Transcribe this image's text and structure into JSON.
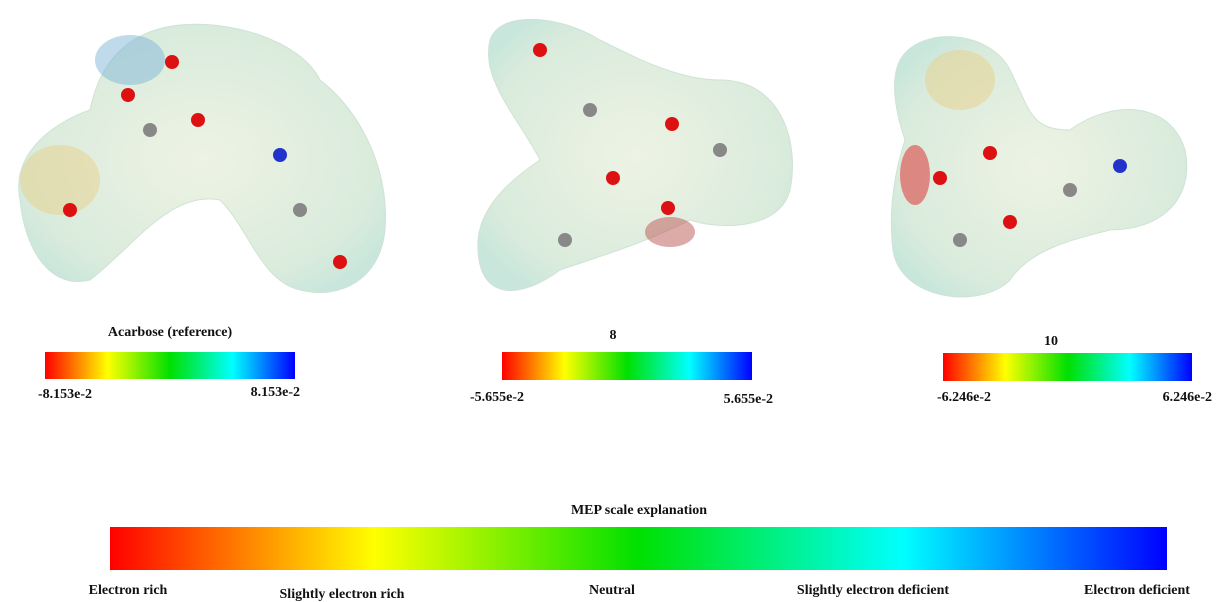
{
  "panels": [
    {
      "title": "Acarbose (reference)",
      "min_label": "-8.153e-2",
      "max_label": "8.153e-2"
    },
    {
      "title": "8",
      "min_label": "-5.655e-2",
      "max_label": "5.655e-2"
    },
    {
      "title": "10",
      "min_label": "-6.246e-2",
      "max_label": "6.246e-2"
    }
  ],
  "legend": {
    "title": "MEP scale explanation",
    "labels": [
      "Electron rich",
      "Slightly electron rich",
      "Neutral",
      "Slightly electron deficient",
      "Electron deficient"
    ]
  }
}
